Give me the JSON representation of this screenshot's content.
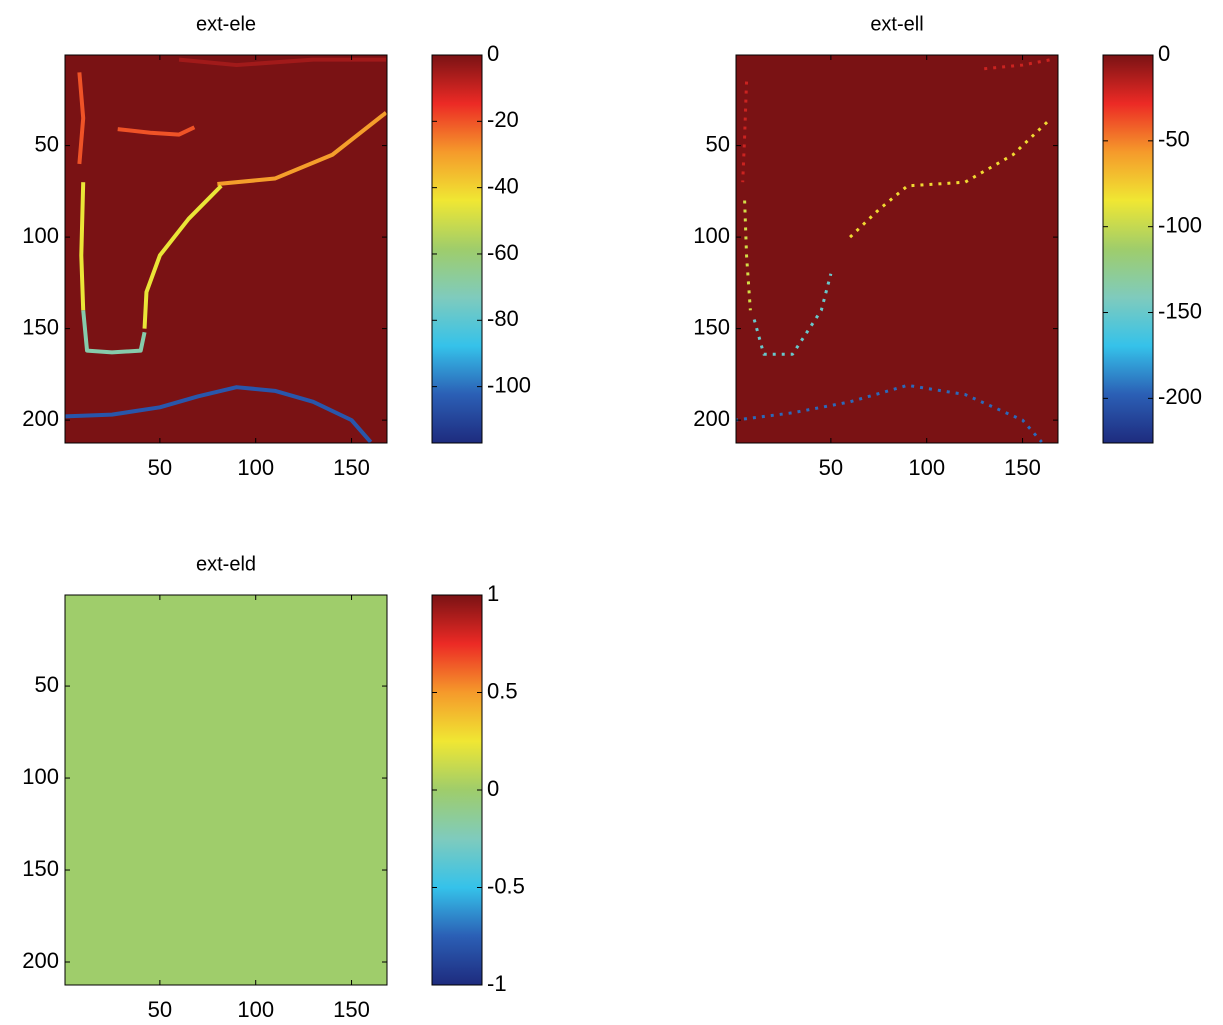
{
  "chart_data": [
    {
      "type": "image",
      "title": "ext-ele",
      "xlim": [
        0.5,
        168.5
      ],
      "ylim": [
        0.5,
        212.5
      ],
      "ydir": "reverse",
      "xticks": [
        50,
        100,
        150
      ],
      "yticks": [
        50,
        100,
        150,
        200
      ],
      "clim": [
        -117,
        0
      ],
      "cticks": [
        0,
        -20,
        -40,
        -60,
        -80,
        -100
      ],
      "colormap": [
        "#1e2b7e",
        "#2b5fb5",
        "#35c2ea",
        "#7fcbbd",
        "#9fcd6b",
        "#f0e733",
        "#f59a2b",
        "#ec2a25",
        "#7a1214"
      ],
      "background": 0,
      "features": [
        {
          "value": -5,
          "dashed": false,
          "x": [
            60,
            90,
            130,
            168
          ],
          "y": [
            3,
            6,
            3,
            3
          ]
        },
        {
          "value": -20,
          "dashed": false,
          "x": [
            28,
            45,
            60,
            68
          ],
          "y": [
            41,
            43,
            44,
            40
          ]
        },
        {
          "value": -20,
          "dashed": false,
          "x": [
            8,
            10,
            8
          ],
          "y": [
            10,
            35,
            60
          ]
        },
        {
          "value": -30,
          "dashed": false,
          "x": [
            80,
            110,
            140,
            168
          ],
          "y": [
            71,
            68,
            55,
            32
          ]
        },
        {
          "value": -45,
          "dashed": false,
          "x": [
            10,
            9,
            10
          ],
          "y": [
            70,
            110,
            140
          ]
        },
        {
          "value": -45,
          "dashed": false,
          "x": [
            82,
            65,
            50,
            43,
            42
          ],
          "y": [
            72,
            90,
            110,
            130,
            150
          ]
        },
        {
          "value": -70,
          "dashed": false,
          "x": [
            10,
            12,
            25,
            40,
            42
          ],
          "y": [
            140,
            162,
            163,
            162,
            152
          ]
        },
        {
          "value": -105,
          "dashed": false,
          "x": [
            0,
            25,
            50,
            70,
            90,
            110,
            130,
            150,
            160
          ],
          "y": [
            198,
            197,
            193,
            187,
            182,
            184,
            190,
            200,
            212
          ]
        }
      ]
    },
    {
      "type": "image",
      "title": "ext-ell",
      "xlim": [
        0.5,
        168.5
      ],
      "ylim": [
        0.5,
        212.5
      ],
      "ydir": "reverse",
      "xticks": [
        50,
        100,
        150
      ],
      "yticks": [
        50,
        100,
        150,
        200
      ],
      "clim": [
        -226,
        0
      ],
      "cticks": [
        0,
        -50,
        -100,
        -150,
        -200
      ],
      "colormap": [
        "#1e2b7e",
        "#2b5fb5",
        "#35c2ea",
        "#7fcbbd",
        "#9fcd6b",
        "#f0e733",
        "#f59a2b",
        "#ec2a25",
        "#7a1214"
      ],
      "background": 0,
      "features": [
        {
          "value": -20,
          "dashed": true,
          "x": [
            6,
            5,
            4
          ],
          "y": [
            15,
            45,
            70
          ]
        },
        {
          "value": -20,
          "dashed": true,
          "x": [
            130,
            150,
            165
          ],
          "y": [
            8,
            6,
            3
          ]
        },
        {
          "value": -80,
          "dashed": true,
          "x": [
            60,
            75,
            90,
            120,
            145,
            165
          ],
          "y": [
            100,
            85,
            72,
            70,
            55,
            35
          ]
        },
        {
          "value": -95,
          "dashed": true,
          "x": [
            5,
            6,
            8
          ],
          "y": [
            80,
            110,
            140
          ]
        },
        {
          "value": -150,
          "dashed": true,
          "x": [
            10,
            15,
            30,
            45,
            50
          ],
          "y": [
            145,
            164,
            164,
            140,
            120
          ]
        },
        {
          "value": -195,
          "dashed": true,
          "x": [
            0,
            30,
            60,
            90,
            120,
            150,
            160
          ],
          "y": [
            200,
            196,
            190,
            181,
            186,
            200,
            212
          ]
        }
      ]
    },
    {
      "type": "image",
      "title": "ext-eld",
      "xlim": [
        0.5,
        168.5
      ],
      "ylim": [
        0.5,
        212.5
      ],
      "ydir": "reverse",
      "xticks": [
        50,
        100,
        150
      ],
      "yticks": [
        50,
        100,
        150,
        200
      ],
      "clim": [
        -1,
        1
      ],
      "cticks": [
        1,
        0.5,
        0,
        -0.5,
        -1
      ],
      "colormap": [
        "#1e2b7e",
        "#2b5fb5",
        "#35c2ea",
        "#7fcbbd",
        "#9fcd6b",
        "#f0e733",
        "#f59a2b",
        "#ec2a25",
        "#7a1214"
      ],
      "background": 0,
      "features": []
    }
  ]
}
